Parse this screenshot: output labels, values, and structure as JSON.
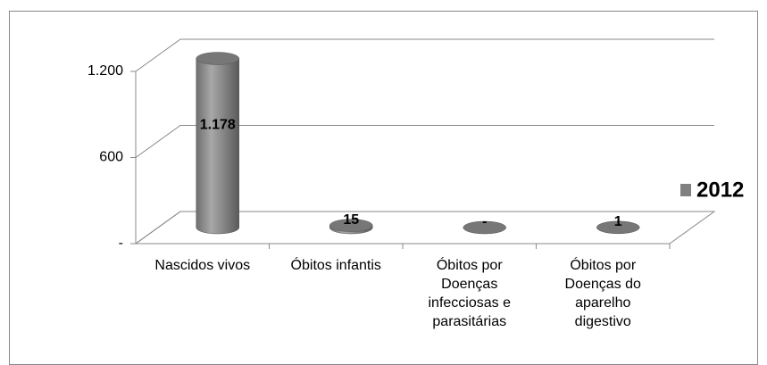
{
  "chart_data": {
    "type": "bar3d",
    "categories": [
      "Nascidos vivos",
      "Óbitos infantis",
      "Óbitos por Doenças infecciosas e parasitárias",
      "Óbitos por Doenças do aparelho digestivo"
    ],
    "series": [
      {
        "name": "2012",
        "color": "#808080",
        "values": [
          1178,
          15,
          0,
          1
        ],
        "value_labels": [
          "1.178",
          "15",
          "-",
          "1"
        ]
      }
    ],
    "ylim": [
      0,
      1200
    ],
    "yticks": [
      {
        "value": 0,
        "label": "-"
      },
      600,
      {
        "value": 1200,
        "label": "1.200"
      }
    ],
    "grid": true,
    "legend": "right"
  }
}
